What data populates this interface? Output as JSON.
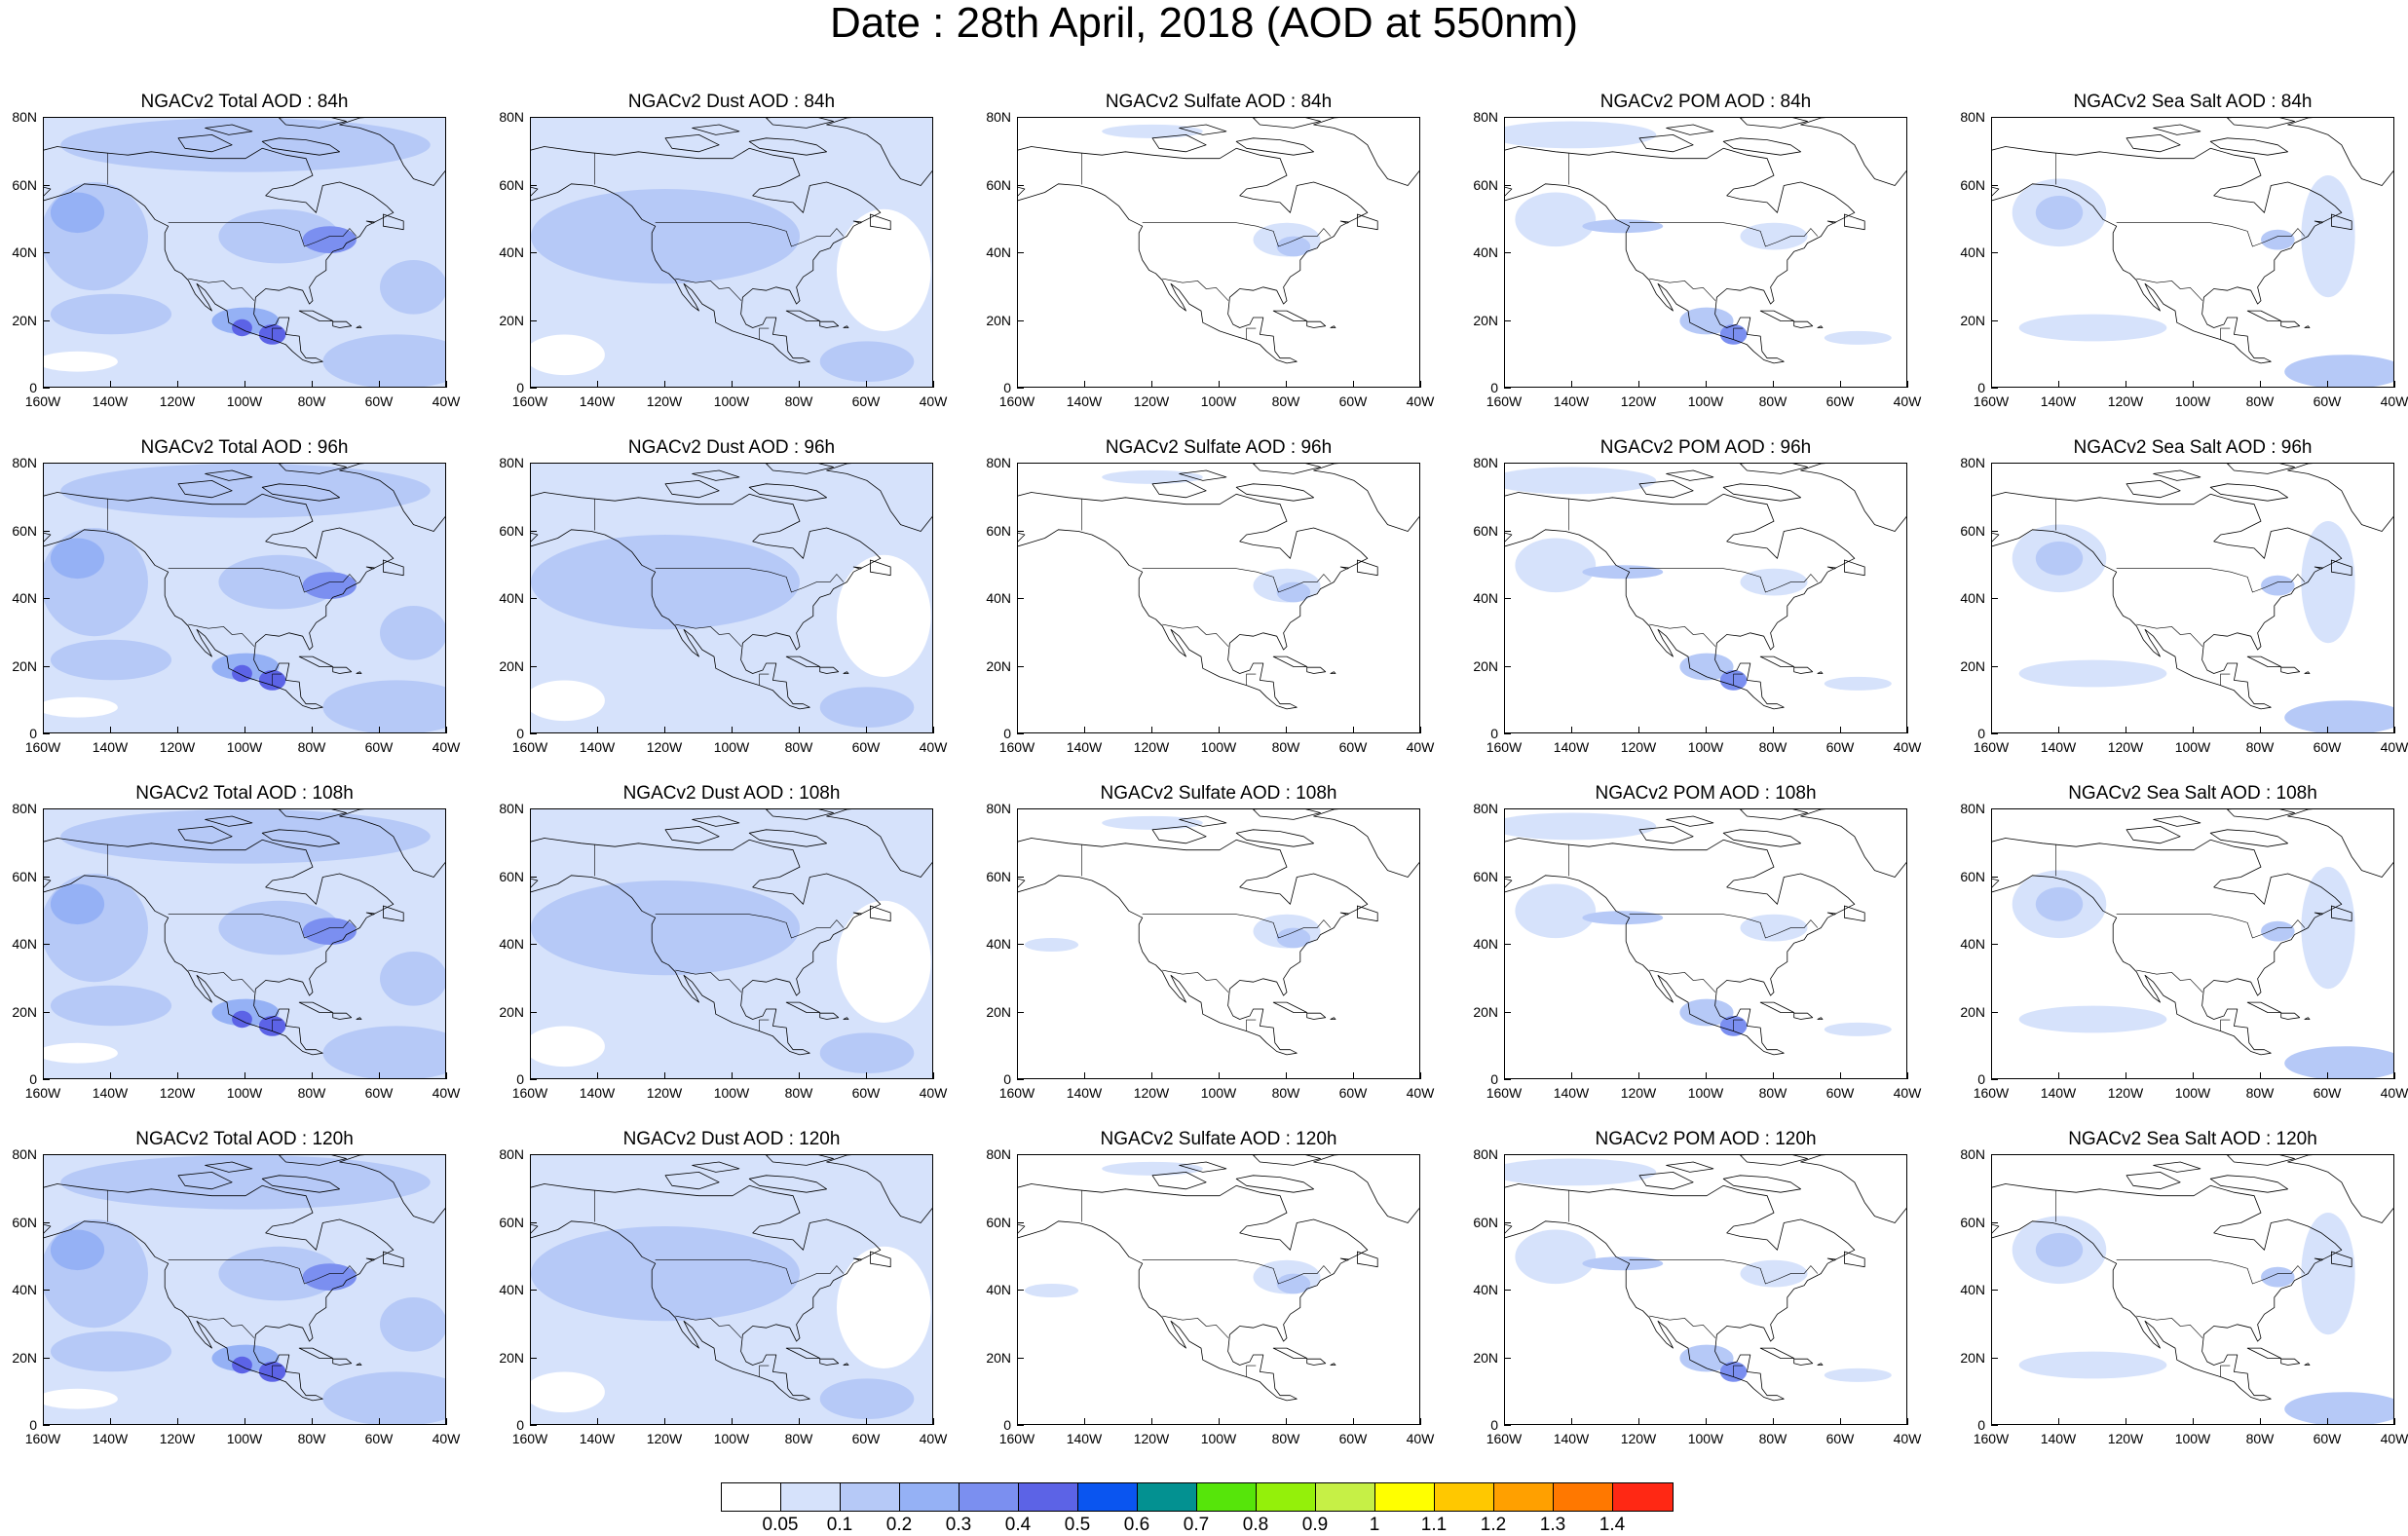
{
  "title": "Date : 28th April, 2018 (AOD at 550nm)",
  "y_ticks": [
    "80N",
    "60N",
    "40N",
    "20N",
    "0"
  ],
  "x_ticks": [
    "160W",
    "140W",
    "120W",
    "100W",
    "80W",
    "60W",
    "40W"
  ],
  "panels": [
    {
      "title": "NGACv2 Total AOD : 84h",
      "species": "total",
      "hour": 84
    },
    {
      "title": "NGACv2 Dust AOD : 84h",
      "species": "dust",
      "hour": 84
    },
    {
      "title": "NGACv2 Sulfate AOD : 84h",
      "species": "sulfate",
      "hour": 84
    },
    {
      "title": "NGACv2 POM AOD : 84h",
      "species": "pom",
      "hour": 84
    },
    {
      "title": "NGACv2 Sea Salt AOD : 84h",
      "species": "seasalt",
      "hour": 84
    },
    {
      "title": "NGACv2 Total AOD : 96h",
      "species": "total",
      "hour": 96
    },
    {
      "title": "NGACv2 Dust AOD : 96h",
      "species": "dust",
      "hour": 96
    },
    {
      "title": "NGACv2 Sulfate AOD : 96h",
      "species": "sulfate",
      "hour": 96
    },
    {
      "title": "NGACv2 POM AOD : 96h",
      "species": "pom",
      "hour": 96
    },
    {
      "title": "NGACv2 Sea Salt AOD : 96h",
      "species": "seasalt",
      "hour": 96
    },
    {
      "title": "NGACv2 Total AOD : 108h",
      "species": "total",
      "hour": 108
    },
    {
      "title": "NGACv2 Dust AOD : 108h",
      "species": "dust",
      "hour": 108
    },
    {
      "title": "NGACv2 Sulfate AOD : 108h",
      "species": "sulfate",
      "hour": 108
    },
    {
      "title": "NGACv2 POM AOD : 108h",
      "species": "pom",
      "hour": 108
    },
    {
      "title": "NGACv2 Sea Salt AOD : 108h",
      "species": "seasalt",
      "hour": 108
    },
    {
      "title": "NGACv2 Total AOD : 120h",
      "species": "total",
      "hour": 120
    },
    {
      "title": "NGACv2 Dust AOD : 120h",
      "species": "dust",
      "hour": 120
    },
    {
      "title": "NGACv2 Sulfate AOD : 120h",
      "species": "sulfate",
      "hour": 120
    },
    {
      "title": "NGACv2 POM AOD : 120h",
      "species": "pom",
      "hour": 120
    },
    {
      "title": "NGACv2 Sea Salt  AOD : 120h",
      "species": "seasalt",
      "hour": 120
    }
  ],
  "colorbar": {
    "colors": [
      "#ffffff",
      "#d6e2fb",
      "#b6c9f7",
      "#95b1f5",
      "#7b8ff0",
      "#5c63e6",
      "#0a55f0",
      "#039191",
      "#56e50a",
      "#94f00a",
      "#c6f046",
      "#ffff00",
      "#ffc800",
      "#ffa000",
      "#ff7800",
      "#ff2814"
    ],
    "labels": [
      "0.05",
      "0.1",
      "0.2",
      "0.3",
      "0.4",
      "0.5",
      "0.6",
      "0.7",
      "0.8",
      "0.9",
      "1",
      "1.1",
      "1.2",
      "1.3",
      "1.4"
    ]
  }
}
